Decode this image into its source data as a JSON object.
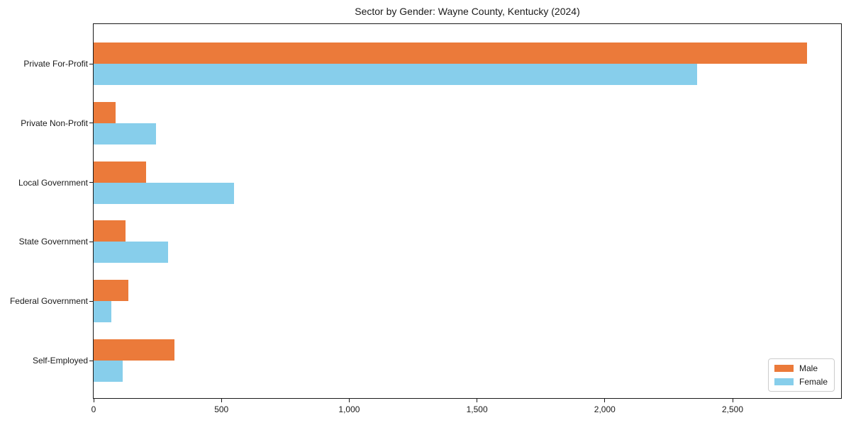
{
  "title": "Sector by Gender: Wayne County, Kentucky (2024)",
  "chart_data": {
    "type": "bar",
    "orientation": "horizontal",
    "title": "Sector by Gender: Wayne County, Kentucky (2024)",
    "categories": [
      "Private For-Profit",
      "Private Non-Profit",
      "Local Government",
      "State Government",
      "Federal Government",
      "Self-Employed"
    ],
    "series": [
      {
        "name": "Male",
        "color": "#EB7A3A",
        "values": [
          2790,
          85,
          205,
          125,
          135,
          315
        ]
      },
      {
        "name": "Female",
        "color": "#87CEEB",
        "values": [
          2360,
          245,
          550,
          290,
          70,
          115
        ]
      }
    ],
    "xlabel": "",
    "ylabel": "",
    "xlim": [
      0,
      2930
    ],
    "x_ticks": [
      0,
      500,
      1000,
      1500,
      2000,
      2500
    ],
    "x_tick_labels": [
      "0",
      "500",
      "1,000",
      "1,500",
      "2,000",
      "2,500"
    ],
    "grid": false,
    "legend_position": "lower right"
  }
}
